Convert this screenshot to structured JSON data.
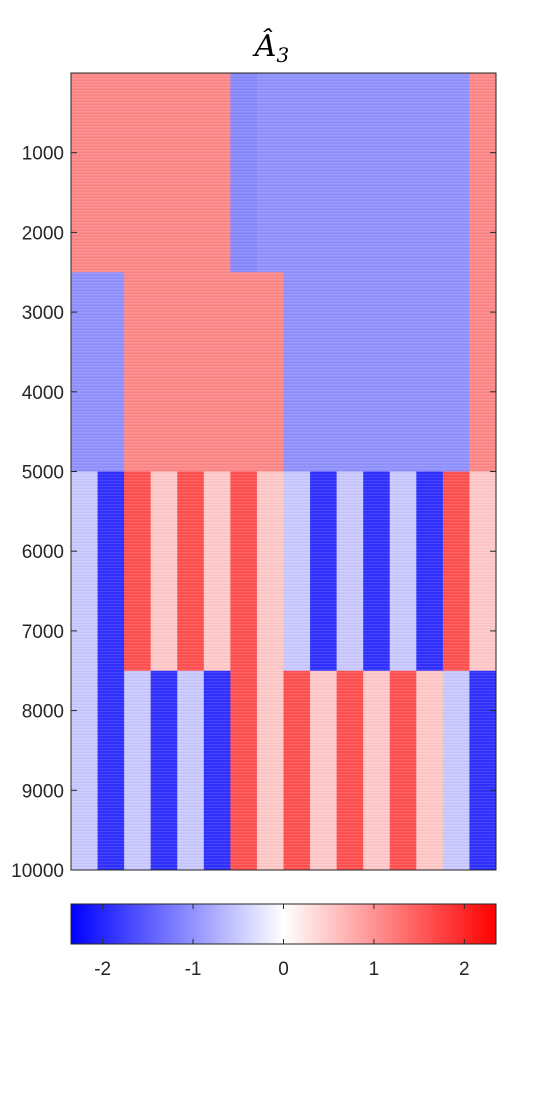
{
  "chart_data": {
    "type": "heatmap",
    "title": "Â",
    "title_subscript": "3",
    "xlabel": "",
    "ylabel": "",
    "y_ticks": [
      "1000",
      "2000",
      "3000",
      "4000",
      "5000",
      "6000",
      "7000",
      "8000",
      "9000",
      "10000"
    ],
    "y_tick_values": [
      1000,
      2000,
      3000,
      4000,
      5000,
      6000,
      7000,
      8000,
      9000,
      10000
    ],
    "ylim": [
      0,
      10000
    ],
    "n_columns": 16,
    "row_block_bounds": [
      0,
      2500,
      5000,
      7500,
      10000
    ],
    "block_values": [
      [
        1.1,
        1.1,
        1.1,
        1.1,
        1.1,
        1.1,
        -1.1,
        -1.0,
        -1.0,
        -1.0,
        -1.0,
        -1.0,
        -1.0,
        -1.0,
        -1.0,
        1.1
      ],
      [
        -1.0,
        -1.0,
        1.1,
        1.1,
        1.1,
        1.1,
        1.1,
        1.1,
        -1.0,
        -1.0,
        -1.0,
        -1.0,
        -1.0,
        -1.0,
        -1.0,
        1.1
      ],
      [
        -0.5,
        -1.9,
        1.6,
        0.5,
        1.6,
        0.5,
        1.6,
        0.5,
        -0.5,
        -1.9,
        -0.5,
        -1.9,
        -0.5,
        -1.9,
        1.6,
        0.5
      ],
      [
        -0.5,
        -1.9,
        -0.5,
        -1.9,
        -0.5,
        -1.9,
        1.6,
        0.5,
        1.6,
        0.5,
        1.6,
        0.5,
        1.6,
        0.5,
        -0.5,
        -1.9
      ]
    ],
    "colorbar": {
      "range": [
        -2.35,
        2.35
      ],
      "ticks": [
        "-2",
        "-1",
        "0",
        "1",
        "2"
      ],
      "tick_values": [
        -2,
        -1,
        0,
        1,
        2
      ],
      "colormap": [
        "#0000ff",
        "#ffffff",
        "#ff0000"
      ],
      "orientation": "horizontal",
      "placement": "bottom"
    },
    "grid": false,
    "legend": "none"
  }
}
